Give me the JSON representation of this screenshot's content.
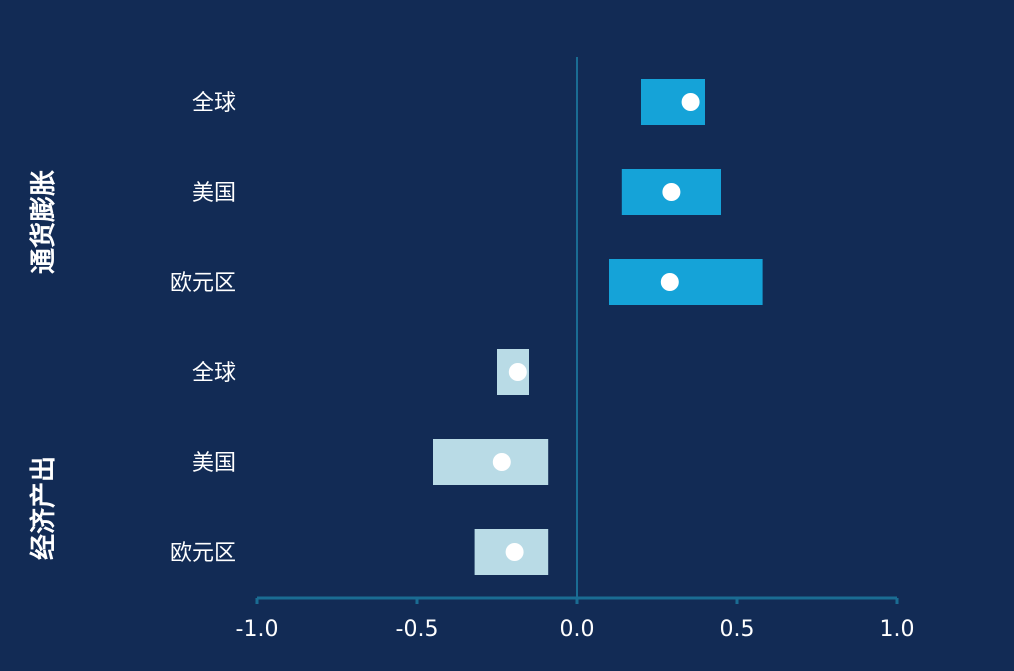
{
  "chart_data": {
    "type": "range-dot",
    "title": "",
    "xlabel": "",
    "ylabel": "",
    "xlim": [
      -1.0,
      1.0
    ],
    "xticks": [
      "-1.0",
      "-0.5",
      "0.0",
      "0.5",
      "1.0"
    ],
    "grid": false,
    "legend": "none",
    "groups": [
      {
        "name": "通货膨胀",
        "color": "#15a3d8",
        "rows": [
          {
            "label": "全球",
            "low": 0.2,
            "high": 0.4,
            "point": 0.355
          },
          {
            "label": "美国",
            "low": 0.14,
            "high": 0.45,
            "point": 0.295
          },
          {
            "label": "欧元区",
            "low": 0.1,
            "high": 0.58,
            "point": 0.29
          }
        ]
      },
      {
        "name": "经济产出",
        "color": "#b9dbe6",
        "rows": [
          {
            "label": "全球",
            "low": -0.25,
            "high": -0.15,
            "point": -0.185
          },
          {
            "label": "美国",
            "low": -0.45,
            "high": -0.09,
            "point": -0.235
          },
          {
            "label": "欧元区",
            "low": -0.32,
            "high": -0.09,
            "point": -0.195
          }
        ]
      }
    ]
  },
  "colors": {
    "background": "#122b55",
    "axis": "#1a6c93",
    "dot": "#ffffff"
  }
}
